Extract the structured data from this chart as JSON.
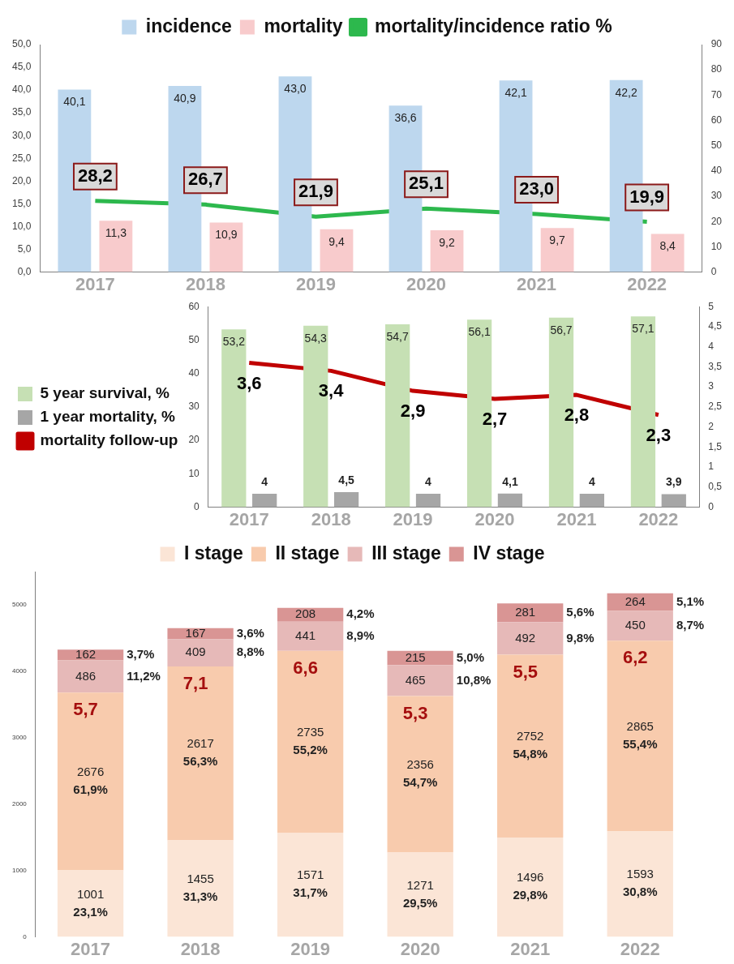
{
  "chart_data": [
    {
      "type": "bar",
      "categories": [
        "2017",
        "2018",
        "2019",
        "2020",
        "2021",
        "2022"
      ],
      "legend": "top",
      "grid": false,
      "ylim": [
        0,
        50
      ],
      "yticks": [
        {
          "value": 0,
          "label": "0,0"
        },
        {
          "value": 5,
          "label": "5,0"
        },
        {
          "value": 10,
          "label": "10,0"
        },
        {
          "value": 15,
          "label": "15,0"
        },
        {
          "value": 20,
          "label": "20,0"
        },
        {
          "value": 25,
          "label": "25,0"
        },
        {
          "value": 30,
          "label": "30,0"
        },
        {
          "value": 35,
          "label": "35,0"
        },
        {
          "value": 40,
          "label": "40,0"
        },
        {
          "value": 45,
          "label": "45,0"
        },
        {
          "value": 50,
          "label": "50,0"
        }
      ],
      "y2lim": [
        0,
        90
      ],
      "y2ticks": [
        0,
        10,
        20,
        30,
        40,
        50,
        60,
        70,
        80,
        90
      ],
      "series": [
        {
          "name": "incidence",
          "color": "#bdd7ee",
          "values": [
            40.1,
            40.9,
            43.0,
            36.6,
            42.1,
            42.2
          ],
          "value_labels": [
            "40,1",
            "40,9",
            "43,0",
            "36,6",
            "42,1",
            "42,2"
          ]
        },
        {
          "name": "mortality",
          "color": "#f8cbcc",
          "values": [
            11.3,
            10.9,
            9.4,
            9.2,
            9.7,
            8.4
          ],
          "value_labels": [
            "11,3",
            "10,9",
            "9,4",
            "9,2",
            "9,7",
            "8,4"
          ]
        },
        {
          "name": "mortality/incidence ratio %",
          "type": "line",
          "axis": "y2",
          "color": "#2db84d",
          "values": [
            28.2,
            26.7,
            21.9,
            25.1,
            23.0,
            19.9
          ],
          "value_labels": [
            "28,2",
            "26,7",
            "21,9",
            "25,1",
            "23,0",
            "19,9"
          ]
        }
      ]
    },
    {
      "type": "bar",
      "categories": [
        "2017",
        "2018",
        "2019",
        "2020",
        "2021",
        "2022"
      ],
      "legend": "left",
      "grid": false,
      "ylim": [
        0,
        60
      ],
      "yticks": [
        0,
        10,
        20,
        30,
        40,
        50,
        60
      ],
      "y2lim": [
        0,
        5
      ],
      "y2ticks": [
        0,
        {
          "value": 0.5,
          "label": "0,5"
        },
        1,
        {
          "value": 1.5,
          "label": "1,5"
        },
        2,
        {
          "value": 2.5,
          "label": "2,5"
        },
        3,
        {
          "value": 3.5,
          "label": "3,5"
        },
        4,
        {
          "value": 4.5,
          "label": "4,5"
        },
        5
      ],
      "series": [
        {
          "name": "5 year survival, %",
          "color": "#c6e0b4",
          "values": [
            53.2,
            54.3,
            54.7,
            56.1,
            56.7,
            57.1
          ],
          "value_labels": [
            "53,2",
            "54,3",
            "54,7",
            "56,1",
            "56,7",
            "57,1"
          ]
        },
        {
          "name": "1 year mortality, %",
          "color": "#a6a6a6",
          "values": [
            4,
            4.5,
            4,
            4.1,
            4,
            3.9
          ],
          "value_labels": [
            "4",
            "4,5",
            "4",
            "4,1",
            "4",
            "3,9"
          ]
        },
        {
          "name": "mortality follow-up",
          "type": "line",
          "axis": "y2",
          "color": "#c00000",
          "values": [
            3.6,
            3.4,
            2.9,
            2.7,
            2.8,
            2.3
          ],
          "value_labels": [
            "3,6",
            "3,4",
            "2,9",
            "2,7",
            "2,8",
            "2,3"
          ]
        }
      ]
    },
    {
      "type": "bar",
      "stacked": true,
      "categories": [
        "2017",
        "2018",
        "2019",
        "2020",
        "2021",
        "2022"
      ],
      "legend": "top",
      "grid": false,
      "ylim": [
        0,
        5500
      ],
      "yticks": [
        0,
        1000,
        2000,
        3000,
        4000,
        5000
      ],
      "series": [
        {
          "name": "I stage",
          "color": "#fbe5d6",
          "values": [
            1001,
            1455,
            1571,
            1271,
            1496,
            1593
          ],
          "value_labels": [
            "1001\n23,1%",
            "1455\n31,3%",
            "1571\n31,7%",
            "1271\n29,5%",
            "1496\n29,8%",
            "1593\n30,8%"
          ]
        },
        {
          "name": "II stage",
          "color": "#f8cbad",
          "values": [
            2676,
            2617,
            2735,
            2356,
            2752,
            2865
          ],
          "value_labels": [
            "2676\n61,9%",
            "2617\n56,3%",
            "2735\n55,2%",
            "2356\n54,7%",
            "2752\n54,8%",
            "2865\n55,4%"
          ]
        },
        {
          "name": "III stage",
          "color": "#e6b9b8",
          "values": [
            486,
            409,
            441,
            465,
            492,
            450
          ],
          "value_labels": [
            "486\n11,2%",
            "409\n8,8%",
            "441\n8,9%",
            "465\n10,8%",
            "492\n9,8%",
            "450\n8,7%"
          ]
        },
        {
          "name": "IV stage",
          "color": "#d99594",
          "values": [
            162,
            167,
            208,
            215,
            281,
            264
          ],
          "value_labels": [
            "162\n3,7%",
            "167\n3,6%",
            "208\n4,2%",
            "215\n5,0%",
            "281\n5,6%",
            "264\n5,1%"
          ]
        }
      ],
      "annotations": [
        "5,7",
        "7,1",
        "6,6",
        "5,3",
        "5,5",
        "6,2"
      ]
    }
  ]
}
